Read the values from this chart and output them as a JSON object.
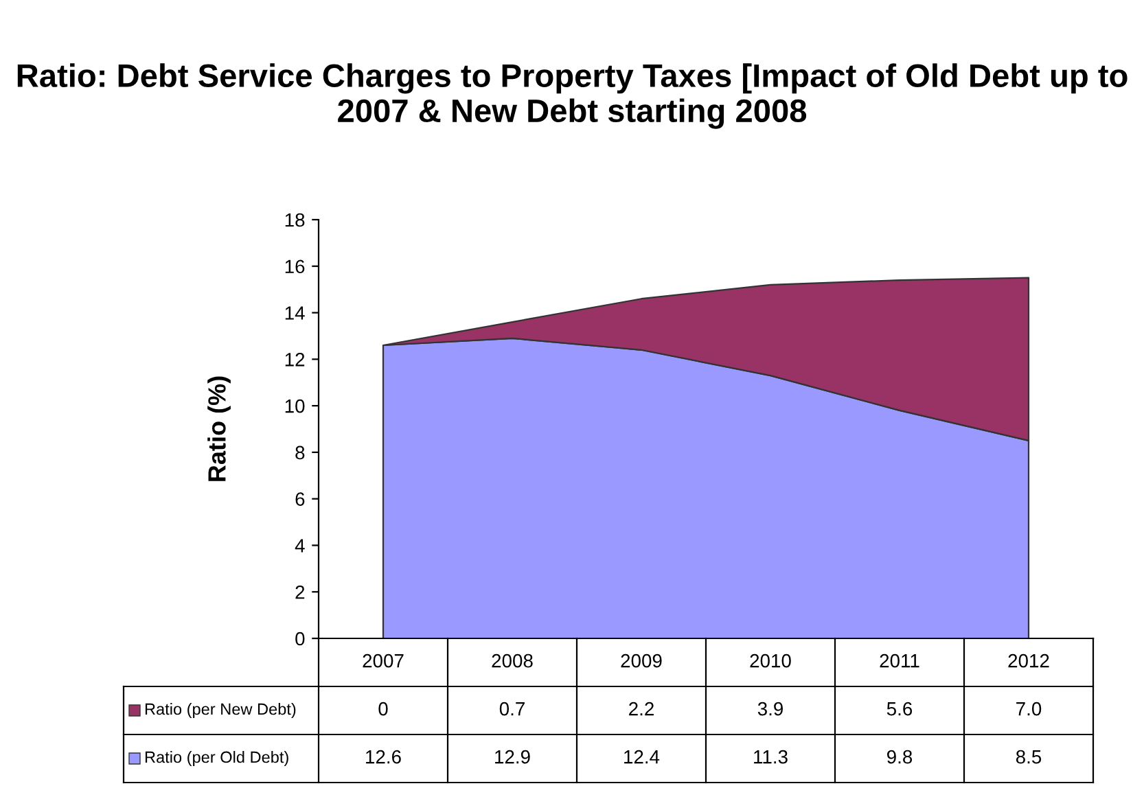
{
  "chart_data": {
    "type": "area",
    "stacked": true,
    "title": "Ratio: Debt Service Charges to Property Taxes [Impact of Old Debt up to 2007 & New Debt starting 2008",
    "ylabel": "Ratio (%)",
    "categories": [
      "2007",
      "2008",
      "2009",
      "2010",
      "2011",
      "2012"
    ],
    "series": [
      {
        "name": "Ratio (per Old Debt)",
        "color": "#9999ff",
        "values": [
          12.6,
          12.9,
          12.4,
          11.3,
          9.8,
          8.5
        ],
        "value_labels": [
          "12.6",
          "12.9",
          "12.4",
          "11.3",
          "9.8",
          "8.5"
        ]
      },
      {
        "name": "Ratio (per New Debt)",
        "color": "#993366",
        "values": [
          0,
          0.7,
          2.2,
          3.9,
          5.6,
          7.0
        ],
        "value_labels": [
          "0",
          "0.7",
          "2.2",
          "3.9",
          "5.6",
          "7.0"
        ]
      }
    ],
    "ylim": [
      0,
      18
    ],
    "yticks": [
      0,
      2,
      4,
      6,
      8,
      10,
      12,
      14,
      16,
      18
    ],
    "grid": false,
    "legend": "bottom"
  }
}
